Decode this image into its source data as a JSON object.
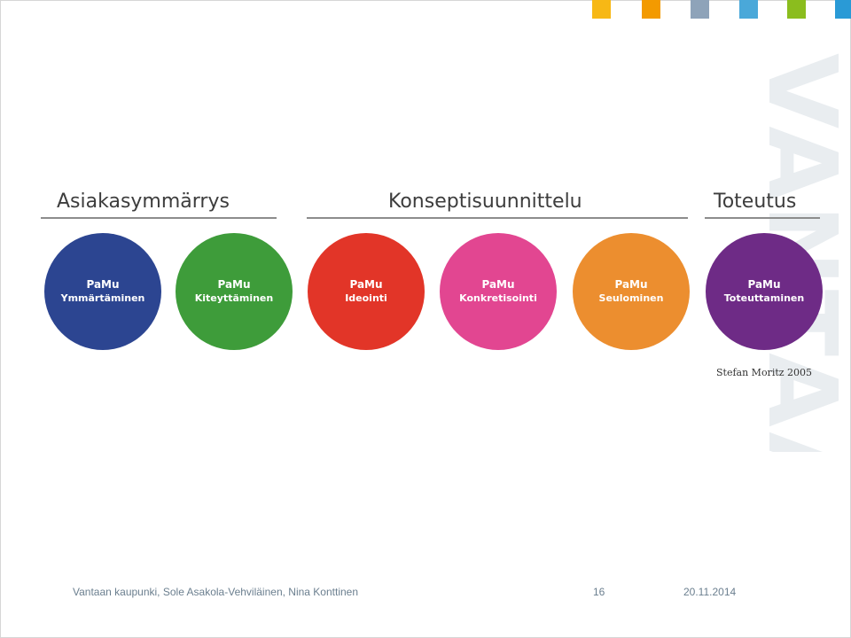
{
  "header": {
    "color_squares": [
      "#f7b815",
      "#f39a00",
      "#8ea3b9",
      "#4aa8d9",
      "#8bbd1e",
      "#2a9ad6"
    ]
  },
  "watermark": {
    "text": "VANTAA",
    "color": "#e9edf0"
  },
  "diagram": {
    "phases": [
      {
        "label": "Asiakasymmärrys"
      },
      {
        "label": "Konseptisuunnittelu"
      },
      {
        "label": "Toteutus"
      }
    ],
    "circles": [
      {
        "line1": "PaMu",
        "line2": "Ymmärtäminen",
        "color": "#2c4591"
      },
      {
        "line1": "PaMu",
        "line2": "Kiteyttäminen",
        "color": "#3e9c3a"
      },
      {
        "line1": "PaMu",
        "line2": "Ideointi",
        "color": "#e23528"
      },
      {
        "line1": "PaMu",
        "line2": "Konkretisointi",
        "color": "#e24691"
      },
      {
        "line1": "PaMu",
        "line2": "Seulominen",
        "color": "#ec8e2f"
      },
      {
        "line1": "PaMu",
        "line2": "Toteuttaminen",
        "color": "#6e2b86"
      }
    ],
    "citation": "Stefan Moritz 2005"
  },
  "footer": {
    "author": "Vantaan kaupunki, Sole Asakola-Vehviläinen, Nina Konttinen",
    "page_number": "16",
    "date": "20.11.2014"
  }
}
